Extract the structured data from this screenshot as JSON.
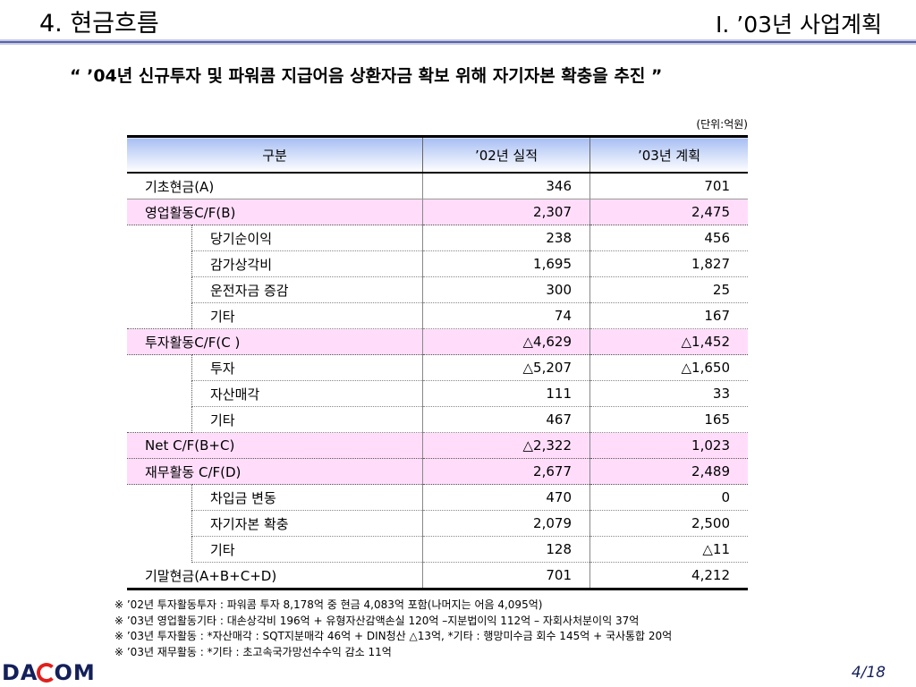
{
  "header": {
    "section_title": "4. 현금흐름",
    "chapter_title": "Ⅰ. ’03년 사업계획"
  },
  "subtitle": "“ ’04년 신규투자 및 파워콤 지급어음 상환자금 확보 위해 자기자본 확충을 추진 ”",
  "unit": "(단위:억원)",
  "table": {
    "headers": [
      "구분",
      "’02년 실적",
      "’03년 계획"
    ],
    "rows": [
      {
        "label": "기초현금(A)",
        "y02": "346",
        "y03": "701",
        "kind": "main"
      },
      {
        "label": "영업활동C/F(B)",
        "y02": "2,307",
        "y03": "2,475",
        "kind": "pink"
      },
      {
        "label": "당기순이익",
        "y02": "238",
        "y03": "456",
        "kind": "sub"
      },
      {
        "label": "감가상각비",
        "y02": "1,695",
        "y03": "1,827",
        "kind": "sub"
      },
      {
        "label": "운전자금 증감",
        "y02": "300",
        "y03": "25",
        "kind": "sub"
      },
      {
        "label": "기타",
        "y02": "74",
        "y03": "167",
        "kind": "sub"
      },
      {
        "label": "투자활동C/F(C )",
        "y02": "△4,629",
        "y03": "△1,452",
        "kind": "pink"
      },
      {
        "label": "투자",
        "y02": "△5,207",
        "y03": "△1,650",
        "kind": "sub"
      },
      {
        "label": "자산매각",
        "y02": "111",
        "y03": "33",
        "kind": "sub"
      },
      {
        "label": "기타",
        "y02": "467",
        "y03": "165",
        "kind": "sub"
      },
      {
        "label": "Net C/F(B+C)",
        "y02": "△2,322",
        "y03": "1,023",
        "kind": "pink"
      },
      {
        "label": "재무활동 C/F(D)",
        "y02": "2,677",
        "y03": "2,489",
        "kind": "pink"
      },
      {
        "label": "차입금 변동",
        "y02": "470",
        "y03": "0",
        "kind": "sub"
      },
      {
        "label": "자기자본 확충",
        "y02": "2,079",
        "y03": "2,500",
        "kind": "sub"
      },
      {
        "label": "기타",
        "y02": "128",
        "y03": "△11",
        "kind": "sub"
      },
      {
        "label": "기말현금(A+B+C+D)",
        "y02": "701",
        "y03": "4,212",
        "kind": "last"
      }
    ]
  },
  "notes": [
    "※ ’02년 투자활동투자 : 파워콤 투자 8,178억 중 현금 4,083억 포함(나머지는 어음 4,095억)",
    "※ ’03년 영업활동기타 : 대손상각비 196억 + 유형자산감액손실 120억 –지분법이익 112억 – 자회사처분이익 37억",
    "※ ’03년 투자활동 : *자산매각 : SQT지분매각 46억 + DIN청산 △13억, *기타 : 행망미수금 회수 145억 + 국사통합 20억",
    "※ ’03년 재무활동 : *기타 : 초고속국가망선수수익 감소 11억"
  ],
  "footer": {
    "logo_left": "DA",
    "logo_right": "OM",
    "page": "4/18"
  },
  "colors": {
    "header_line": "#5a64a8",
    "header_gradient_top": "#a8bff4",
    "highlight_row": "#ffddfa",
    "logo_blue": "#14205a",
    "logo_red": "#e0201c"
  }
}
